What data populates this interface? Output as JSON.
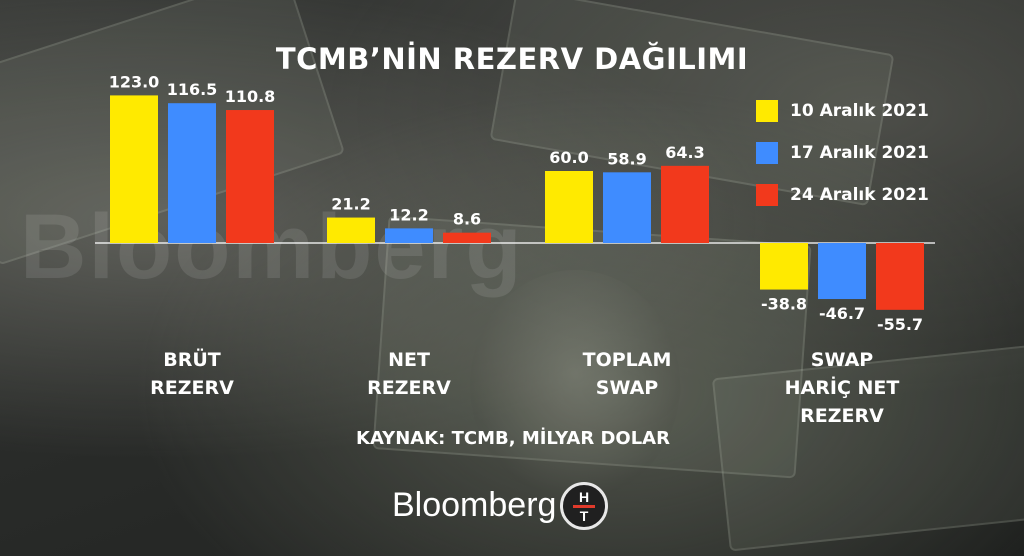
{
  "chart_data": {
    "type": "bar",
    "title": "TCMB’NİN REZERV DAĞILIMI",
    "categories": [
      [
        "BRÜT",
        "REZERV"
      ],
      [
        "NET",
        "REZERV"
      ],
      [
        "TOPLAM",
        "SWAP"
      ],
      [
        "SWAP",
        "HARİÇ NET",
        "REZERV"
      ]
    ],
    "series": [
      {
        "name": "10 Aralık 2021",
        "color": "#ffea00",
        "values": [
          123.0,
          21.2,
          60.0,
          -38.8
        ],
        "labels": [
          "123.0",
          "21.2",
          "60.0",
          "-38.8"
        ]
      },
      {
        "name": "17 Aralık 2021",
        "color": "#3f8cff",
        "values": [
          116.5,
          12.2,
          58.9,
          -46.7
        ],
        "labels": [
          "116.5",
          "12.2",
          "58.9",
          "-46.7"
        ]
      },
      {
        "name": "24 Aralık 2021",
        "color": "#f2391c",
        "values": [
          110.8,
          8.6,
          64.3,
          -55.7
        ],
        "labels": [
          "110.8",
          "8.6",
          "64.3",
          "-55.7"
        ]
      }
    ],
    "ylim": [
      -60,
      125
    ],
    "grid": false,
    "legend": "top-right",
    "source": "KAYNAK: TCMB, MİLYAR DOLAR"
  },
  "brand": {
    "wordmark": "Bloomberg",
    "logo_letters": [
      "H",
      "T"
    ]
  }
}
